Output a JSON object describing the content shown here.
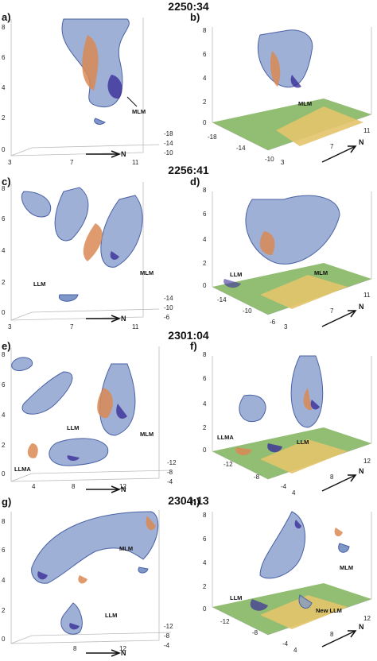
{
  "time_labels": [
    "2250:34",
    "2256:41",
    "2301:04",
    "2304:13"
  ],
  "panels": [
    {
      "label": "a)",
      "ticks_left": [
        "8",
        "6",
        "4",
        "2",
        "0"
      ],
      "ticks_bottom": [
        "3",
        "7",
        "11"
      ],
      "ticks_right": [
        "-18",
        "-14",
        "-10"
      ],
      "annotations": [
        "MLM"
      ],
      "north": "N"
    },
    {
      "label": "b)",
      "ticks_left": [
        "8",
        "6",
        "4",
        "2",
        "0"
      ],
      "ticks_bottom": [
        "-18",
        "-14",
        "-10",
        "3",
        "7",
        "11"
      ],
      "annotations": [
        "MLM"
      ],
      "north": "N"
    },
    {
      "label": "c)",
      "ticks_left": [
        "8",
        "6",
        "4",
        "2",
        "0"
      ],
      "ticks_bottom": [
        "3",
        "7",
        "11"
      ],
      "ticks_right": [
        "-14",
        "-10",
        "-6"
      ],
      "annotations": [
        "LLM",
        "MLM"
      ],
      "north": "N"
    },
    {
      "label": "d)",
      "ticks_left": [
        "8",
        "6",
        "4",
        "2",
        "0"
      ],
      "ticks_bottom": [
        "-14",
        "-10",
        "-6",
        "3",
        "7",
        "11"
      ],
      "annotations": [
        "LLM",
        "MLM"
      ],
      "north": "N"
    },
    {
      "label": "e)",
      "ticks_left": [
        "8",
        "6",
        "4",
        "2",
        "0"
      ],
      "ticks_bottom": [
        "4",
        "8",
        "12"
      ],
      "ticks_right": [
        "-12",
        "-8",
        "-4"
      ],
      "annotations": [
        "LLM",
        "MLM",
        "LLMA"
      ],
      "north": "N"
    },
    {
      "label": "f)",
      "ticks_left": [
        "8",
        "6",
        "4",
        "2",
        "0"
      ],
      "ticks_bottom": [
        "-12",
        "-8",
        "-4",
        "4",
        "8",
        "12"
      ],
      "annotations": [
        "LLMA",
        "LLM"
      ],
      "north": "N"
    },
    {
      "label": "g)",
      "ticks_left": [
        "8",
        "6",
        "4",
        "2",
        "0"
      ],
      "ticks_bottom": [
        "8",
        "12"
      ],
      "ticks_right": [
        "-12",
        "-8",
        "-4"
      ],
      "annotations": [
        "MLM",
        "LLM"
      ],
      "north": "N"
    },
    {
      "label": "h)",
      "ticks_left": [
        "8",
        "6",
        "4",
        "2",
        "0"
      ],
      "ticks_bottom": [
        "-12",
        "-8",
        "-4",
        "4",
        "8",
        "12"
      ],
      "annotations": [
        "MLM",
        "LLM",
        "New LLM"
      ],
      "north": "N"
    }
  ],
  "colors": {
    "blue_surface": "#7f96c8",
    "blue_edge": "#4a62a6",
    "dark_core": "#3b2f9a",
    "orange": "#d98a55",
    "ground_green": "#7fb35a",
    "ground_yellow": "#e3c46a"
  }
}
